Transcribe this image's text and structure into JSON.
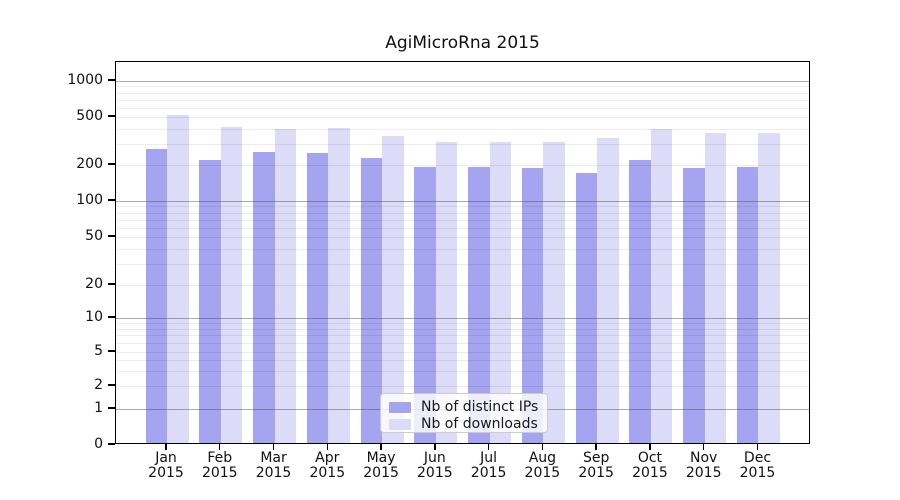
{
  "chart_data": {
    "type": "bar",
    "title": "AgiMicroRna 2015",
    "categories": [
      "Jan",
      "Feb",
      "Mar",
      "Apr",
      "May",
      "Jun",
      "Jul",
      "Aug",
      "Sep",
      "Oct",
      "Nov",
      "Dec"
    ],
    "x_tick_year": "2015",
    "series": [
      {
        "name": "Nb of distinct IPs",
        "color": "#a4a4f0",
        "values": [
          260,
          210,
          245,
          242,
          220,
          185,
          185,
          180,
          165,
          210,
          183,
          186
        ]
      },
      {
        "name": "Nb of downloads",
        "color": "#dcdcf8",
        "values": [
          500,
          395,
          382,
          388,
          334,
          299,
          297,
          298,
          321,
          382,
          353,
          355
        ]
      }
    ],
    "y_scale": "symlog",
    "ylim": [
      0,
      1400
    ],
    "y_ticks": [
      0,
      1,
      2,
      5,
      10,
      20,
      50,
      100,
      200,
      500,
      1000
    ],
    "major_gridlines": [
      1,
      10,
      100,
      1000
    ],
    "minor_gridlines": [
      2,
      3,
      4,
      5,
      6,
      7,
      8,
      9,
      20,
      30,
      40,
      50,
      60,
      70,
      80,
      90,
      200,
      300,
      400,
      500,
      600,
      700,
      800,
      900
    ],
    "grid": true,
    "grid_above_bars": true,
    "legend_position": "lower center",
    "colors": {
      "major_grid": "#b4b4b4",
      "minor_grid": "#ececec",
      "legend_border": "#cccccc",
      "axis": "#000000",
      "text": "#111111"
    }
  }
}
